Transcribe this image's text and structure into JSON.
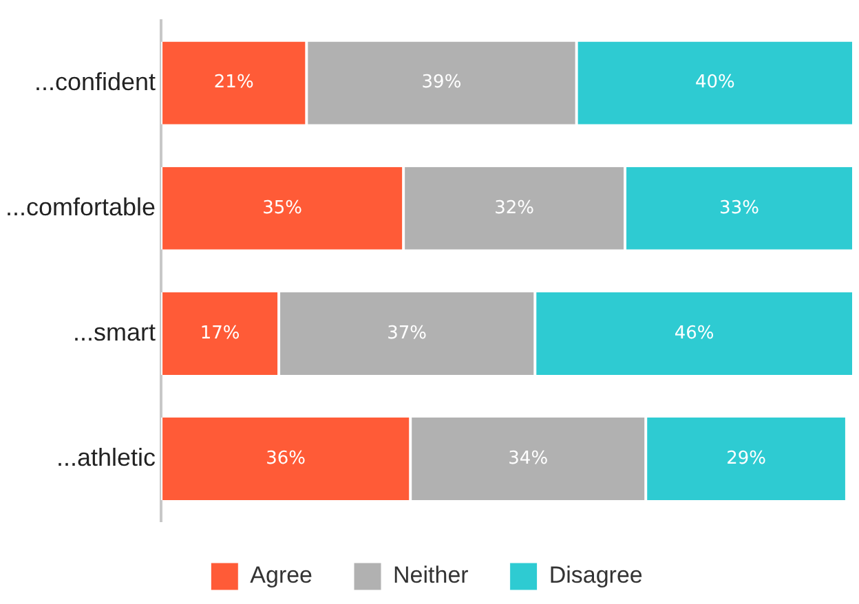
{
  "chart_data": {
    "type": "bar",
    "orientation": "horizontal",
    "stacked": true,
    "xlim": [
      0,
      100
    ],
    "tick_labels": "y",
    "categories": [
      "...confident",
      "...comfortable",
      "...smart",
      "...athletic"
    ],
    "series": [
      {
        "name": "Agree",
        "color": "#ff5b37",
        "values": [
          21,
          35,
          17,
          36
        ],
        "value_labels": [
          "21%",
          "35%",
          "17%",
          "36%"
        ]
      },
      {
        "name": "Neither",
        "color": "#b1b1b1",
        "values": [
          39,
          32,
          37,
          34
        ],
        "value_labels": [
          "39%",
          "32%",
          "37%",
          "34%"
        ]
      },
      {
        "name": "Disagree",
        "color": "#2ecbd2",
        "values": [
          40,
          33,
          46,
          29
        ],
        "value_labels": [
          "40%",
          "33%",
          "46%",
          "29%"
        ]
      }
    ],
    "legend": "bottom"
  }
}
